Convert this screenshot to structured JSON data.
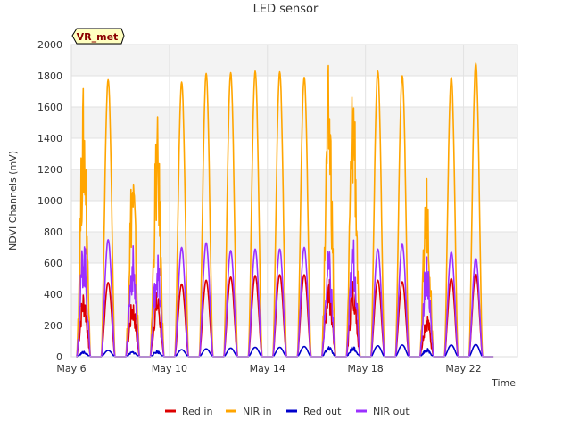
{
  "chart_data": {
    "type": "line",
    "title": "LED sensor",
    "xlabel": "Time",
    "ylabel": "NDVI Channels (mV)",
    "badge": "VR_met",
    "x_unit": "day of May",
    "xlim": [
      6,
      24.2
    ],
    "ylim": [
      0,
      2000
    ],
    "yticks": [
      0,
      200,
      400,
      600,
      800,
      1000,
      1200,
      1400,
      1600,
      1800,
      2000
    ],
    "xticks": [
      {
        "x": 6,
        "label": "May 6"
      },
      {
        "x": 10,
        "label": "May 10"
      },
      {
        "x": 14,
        "label": "May 14"
      },
      {
        "x": 18,
        "label": "May 18"
      },
      {
        "x": 22,
        "label": "May 22"
      }
    ],
    "grid": true,
    "legend_position": "bottom",
    "series": [
      {
        "name": "Red in",
        "color": "#dd0000",
        "daily_peaks": [
          440,
          475,
          380,
          430,
          465,
          490,
          510,
          520,
          525,
          525,
          520,
          525,
          490,
          480,
          300,
          500,
          530
        ]
      },
      {
        "name": "NIR in",
        "color": "#ffa500",
        "daily_peaks": [
          1745,
          1775,
          1300,
          1550,
          1760,
          1815,
          1820,
          1830,
          1825,
          1790,
          1890,
          1890,
          1830,
          1800,
          1200,
          1790,
          1880
        ]
      },
      {
        "name": "Red out",
        "color": "#0000cc",
        "daily_peaks": [
          35,
          40,
          35,
          40,
          45,
          50,
          55,
          60,
          60,
          65,
          65,
          70,
          70,
          75,
          55,
          75,
          78
        ]
      },
      {
        "name": "NIR out",
        "color": "#9b30ff",
        "daily_peaks": [
          800,
          750,
          720,
          700,
          700,
          730,
          680,
          690,
          690,
          700,
          700,
          780,
          690,
          720,
          690,
          670,
          630
        ]
      }
    ]
  }
}
